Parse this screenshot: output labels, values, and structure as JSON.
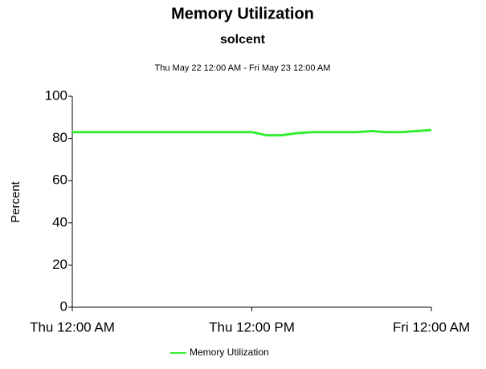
{
  "chart_data": {
    "type": "line",
    "title": "Memory Utilization",
    "subtitle": "solcent",
    "date_range": "Thu May 22 12:00 AM - Fri May 23 12:00 AM",
    "y_label": "Percent",
    "x": [
      0,
      1,
      2,
      3,
      4,
      5,
      6,
      7,
      8,
      9,
      10,
      11,
      12,
      13,
      14,
      15,
      16,
      17,
      18,
      19,
      20,
      21,
      22,
      23,
      24
    ],
    "series": [
      {
        "name": "Memory Utilization",
        "color": "#33ee33",
        "values": [
          83,
          83,
          83,
          83,
          83,
          83,
          83,
          83,
          83,
          83,
          83,
          83,
          83,
          81.5,
          81.5,
          82.5,
          83,
          83,
          83,
          83,
          83.5,
          83,
          83,
          83.5,
          84
        ]
      }
    ],
    "xlim": [
      0,
      24
    ],
    "xticks": [
      {
        "value": 0,
        "label": "Thu 12:00 AM"
      },
      {
        "value": 12,
        "label": "Thu 12:00 PM"
      },
      {
        "value": 24,
        "label": "Fri 12:00 AM"
      }
    ],
    "ylim": [
      0,
      100
    ],
    "yticks": [
      0,
      20,
      40,
      60,
      80,
      100
    ],
    "grid": false,
    "legend": "bottom"
  }
}
